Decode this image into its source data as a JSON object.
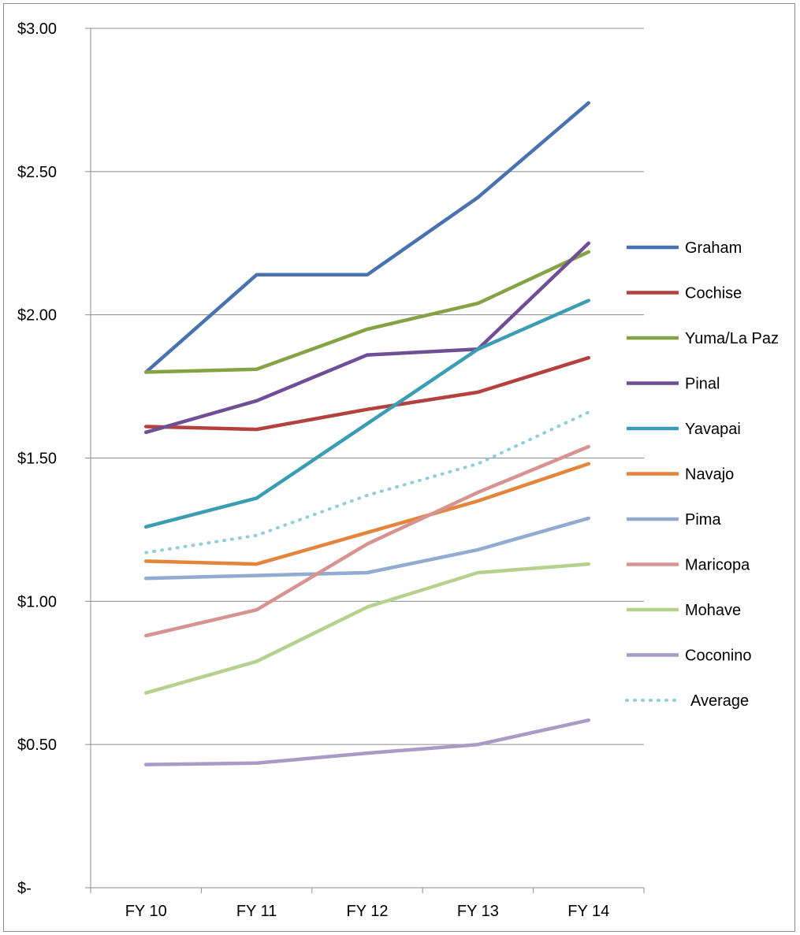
{
  "chart_data": {
    "type": "line",
    "title": "",
    "xlabel": "",
    "ylabel": "",
    "categories": [
      "FY 10",
      "FY 11",
      "FY 12",
      "FY 13",
      "FY 14"
    ],
    "ylim": [
      0,
      3.0
    ],
    "y_ticks": [
      0,
      0.5,
      1.0,
      1.5,
      2.0,
      2.5,
      3.0
    ],
    "y_tick_labels": [
      "$-",
      "$0.50",
      "$1.00",
      "$1.50",
      "$2.00",
      "$2.50",
      "$3.00"
    ],
    "grid": true,
    "legend_position": "right",
    "series": [
      {
        "name": "Graham",
        "color": "#4a72b0",
        "dashed": false,
        "values": [
          1.8,
          2.14,
          2.14,
          2.41,
          2.74
        ]
      },
      {
        "name": "Cochise",
        "color": "#b3413e",
        "dashed": false,
        "values": [
          1.61,
          1.6,
          1.67,
          1.73,
          1.85
        ]
      },
      {
        "name": "Yuma/La Paz",
        "color": "#84a344",
        "dashed": false,
        "values": [
          1.8,
          1.81,
          1.95,
          2.04,
          2.22
        ]
      },
      {
        "name": "Pinal",
        "color": "#6e4f95",
        "dashed": false,
        "values": [
          1.59,
          1.7,
          1.86,
          1.88,
          2.25
        ]
      },
      {
        "name": "Yavapai",
        "color": "#3a9db2",
        "dashed": false,
        "values": [
          1.26,
          1.36,
          1.62,
          1.88,
          2.05
        ]
      },
      {
        "name": "Navajo",
        "color": "#e3853a",
        "dashed": false,
        "values": [
          1.14,
          1.13,
          1.24,
          1.35,
          1.48
        ]
      },
      {
        "name": "Pima",
        "color": "#92abd2",
        "dashed": false,
        "values": [
          1.08,
          1.09,
          1.1,
          1.18,
          1.29
        ]
      },
      {
        "name": "Maricopa",
        "color": "#d69392",
        "dashed": false,
        "values": [
          0.88,
          0.97,
          1.2,
          1.38,
          1.54
        ]
      },
      {
        "name": "Mohave",
        "color": "#b6d18e",
        "dashed": false,
        "values": [
          0.68,
          0.79,
          0.98,
          1.1,
          1.13
        ]
      },
      {
        "name": "Coconino",
        "color": "#a99bc5",
        "dashed": false,
        "values": [
          0.43,
          0.435,
          0.47,
          0.5,
          0.585
        ]
      },
      {
        "name": "Average",
        "color": "#92cddc",
        "dashed": true,
        "values": [
          1.17,
          1.23,
          1.37,
          1.48,
          1.66
        ]
      }
    ]
  }
}
